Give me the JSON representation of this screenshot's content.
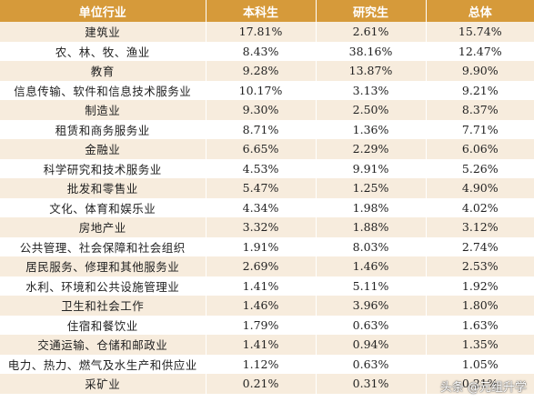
{
  "headers": [
    "单位行业",
    "本科生",
    "研究生",
    "总体"
  ],
  "rows": [
    [
      "建筑业",
      "17.81%",
      "2.61%",
      "15.74%"
    ],
    [
      "农、林、牧、渔业",
      "8.43%",
      "38.16%",
      "12.47%"
    ],
    [
      "教育",
      "9.28%",
      "13.87%",
      "9.90%"
    ],
    [
      "信息传输、软件和信息技术服务业",
      "10.17%",
      "3.13%",
      "9.21%"
    ],
    [
      "制造业",
      "9.30%",
      "2.50%",
      "8.37%"
    ],
    [
      "租赁和商务服务业",
      "8.71%",
      "1.36%",
      "7.71%"
    ],
    [
      "金融业",
      "6.65%",
      "2.29%",
      "6.06%"
    ],
    [
      "科学研究和技术服务业",
      "4.53%",
      "9.91%",
      "5.26%"
    ],
    [
      "批发和零售业",
      "5.47%",
      "1.25%",
      "4.90%"
    ],
    [
      "文化、体育和娱乐业",
      "4.34%",
      "1.98%",
      "4.02%"
    ],
    [
      "房地产业",
      "3.32%",
      "1.88%",
      "3.12%"
    ],
    [
      "公共管理、社会保障和社会组织",
      "1.91%",
      "8.03%",
      "2.74%"
    ],
    [
      "居民服务、修理和其他服务业",
      "2.69%",
      "1.46%",
      "2.53%"
    ],
    [
      "水利、环境和公共设施管理业",
      "1.41%",
      "5.11%",
      "1.92%"
    ],
    [
      "卫生和社会工作",
      "1.46%",
      "3.96%",
      "1.80%"
    ],
    [
      "住宿和餐饮业",
      "1.79%",
      "0.63%",
      "1.63%"
    ],
    [
      "交通运输、仓储和邮政业",
      "1.41%",
      "0.94%",
      "1.35%"
    ],
    [
      "电力、热力、燃气及水生产和供应业",
      "1.12%",
      "0.63%",
      "1.05%"
    ],
    [
      "采矿业",
      "0.21%",
      "0.31%",
      "0.21%"
    ]
  ],
  "watermark": {
    "text": "头条 @元组升学"
  },
  "colors": {
    "header_bg": "#d69a3a",
    "row_alt_bg": "#f7ecdd"
  }
}
